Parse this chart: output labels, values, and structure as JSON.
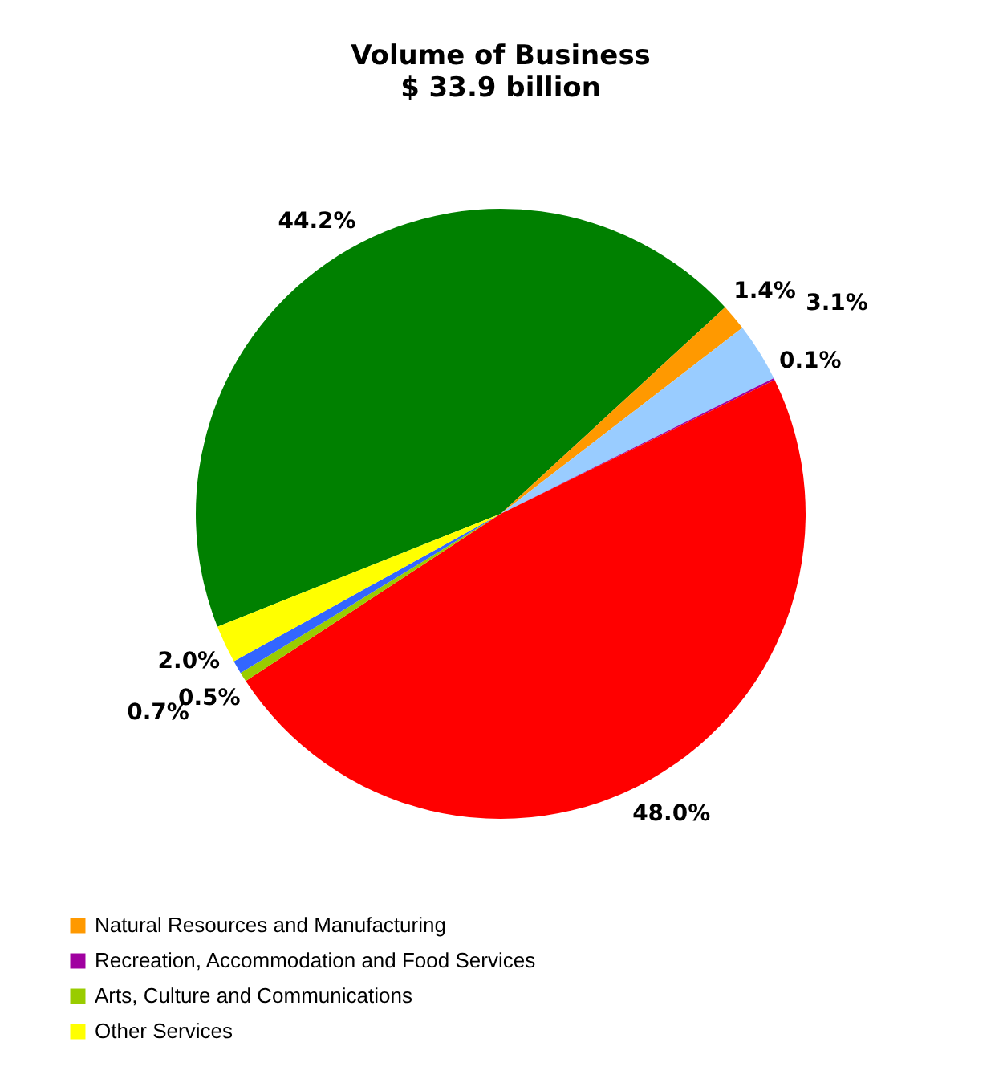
{
  "chart_data": {
    "type": "pie",
    "title": "Volume of Business",
    "subtitle": "$ 33.9 billion",
    "categories": [
      null,
      "Natural Resources and Manufacturing",
      null,
      "Recreation, Accommodation and Food Services",
      null,
      "Arts, Culture and Communications",
      null,
      "Other Services"
    ],
    "values": [
      44.2,
      1.4,
      3.1,
      0.1,
      48.0,
      0.5,
      0.7,
      2.0
    ],
    "colors": [
      "#008000",
      "#ff9900",
      "#99ccff",
      "#a000a0",
      "#ff0000",
      "#99cc00",
      "#3366ff",
      "#ffff00"
    ],
    "value_labels": [
      "44.2%",
      "1.4%",
      "3.1%",
      "0.1%",
      "48.0%",
      "0.5%",
      "0.7%",
      "2.0%"
    ],
    "legend": "bottom left"
  }
}
